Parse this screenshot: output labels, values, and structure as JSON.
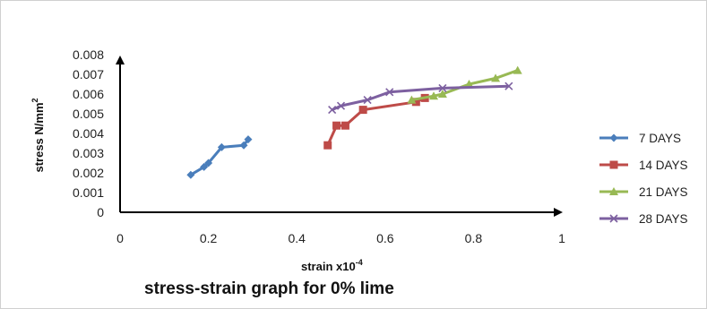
{
  "chart_data": {
    "type": "line",
    "title": "stress-strain graph for 0% lime",
    "xlabel": {
      "base": "strain x10",
      "sup": "-4"
    },
    "ylabel": {
      "base": "stress N/mm",
      "sup": "2"
    },
    "xlim": [
      0,
      1
    ],
    "ylim": [
      0,
      0.008
    ],
    "x_ticks": [
      "0",
      "0.2",
      "0.4",
      "0.6",
      "0.8",
      "1"
    ],
    "y_ticks": [
      "0",
      "0.001",
      "0.002",
      "0.003",
      "0.004",
      "0.005",
      "0.006",
      "0.007",
      "0.008"
    ],
    "grid": false,
    "legend_position": "right",
    "series": [
      {
        "name": "7 DAYS",
        "color": "#4a7ebb",
        "marker": "diamond",
        "x": [
          0.16,
          0.19,
          0.2,
          0.23,
          0.28,
          0.29
        ],
        "y": [
          0.0019,
          0.0023,
          0.0025,
          0.0033,
          0.0034,
          0.0037
        ]
      },
      {
        "name": "14 DAYS",
        "color": "#be4b48",
        "marker": "square",
        "x": [
          0.47,
          0.49,
          0.51,
          0.55,
          0.67,
          0.69
        ],
        "y": [
          0.0034,
          0.0044,
          0.0044,
          0.0052,
          0.0056,
          0.0058
        ]
      },
      {
        "name": "21 DAYS",
        "color": "#98b954",
        "marker": "triangle",
        "x": [
          0.66,
          0.71,
          0.73,
          0.79,
          0.85,
          0.9
        ],
        "y": [
          0.0057,
          0.0059,
          0.006,
          0.0065,
          0.0068,
          0.0072
        ]
      },
      {
        "name": "28 DAYS",
        "color": "#7d60a0",
        "marker": "x",
        "x": [
          0.48,
          0.5,
          0.56,
          0.61,
          0.73,
          0.88
        ],
        "y": [
          0.0052,
          0.0054,
          0.0057,
          0.0061,
          0.0063,
          0.0064
        ]
      }
    ]
  }
}
